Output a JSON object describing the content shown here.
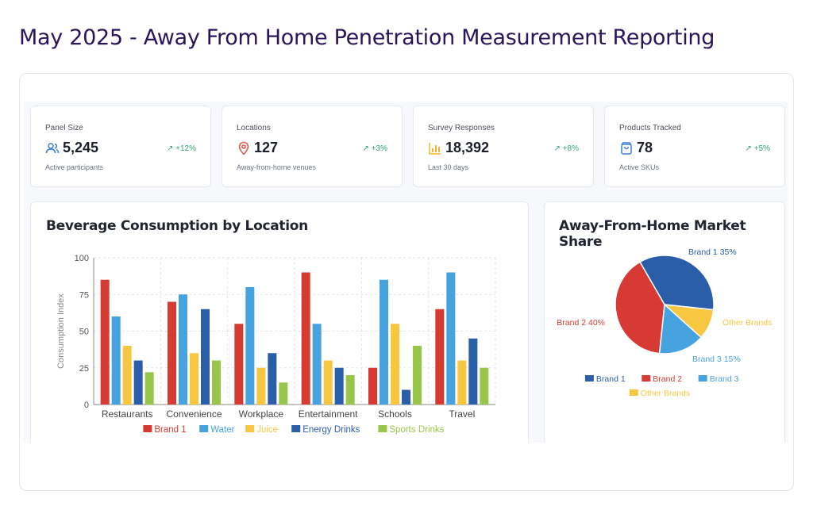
{
  "page": {
    "title": "May 2025 - Away From Home Penetration Measurement Reporting"
  },
  "kpis": [
    {
      "label": "Panel Size",
      "value": "5,245",
      "change": "+12%",
      "sub": "Active participants",
      "icon": "users-icon",
      "icon_color": "#3b7dd8"
    },
    {
      "label": "Locations",
      "value": "127",
      "change": "+3%",
      "sub": "Away-from-home venues",
      "icon": "map-pin-icon",
      "icon_color": "#e05a4f"
    },
    {
      "label": "Survey Responses",
      "value": "18,392",
      "change": "+8%",
      "sub": "Last 30 days",
      "icon": "bar-chart-icon",
      "icon_color": "#f2b531"
    },
    {
      "label": "Products Tracked",
      "value": "78",
      "change": "+5%",
      "sub": "Active SKUs",
      "icon": "shopping-bag-icon",
      "icon_color": "#3b7dd8"
    }
  ],
  "colors": {
    "trend_up": "#2fa36b",
    "brand1": "#d63a32",
    "water": "#47a2e0",
    "juice": "#f7c742",
    "energy": "#2a5ea8",
    "sports": "#97c64b"
  },
  "chart_data": [
    {
      "type": "bar",
      "title": "Beverage Consumption by Location",
      "xlabel": "",
      "ylabel": "Consumption Index",
      "ylim": [
        0,
        100
      ],
      "yticks": [
        0,
        25,
        50,
        75,
        100
      ],
      "grid": true,
      "legend_placement": "bottom",
      "categories": [
        "Restaurants",
        "Convenience",
        "Workplace",
        "Entertainment",
        "Schools",
        "Travel"
      ],
      "series": [
        {
          "name": "Brand 1",
          "color": "#d63a32",
          "values": [
            85,
            70,
            55,
            90,
            25,
            65
          ]
        },
        {
          "name": "Water",
          "color": "#47a2e0",
          "values": [
            60,
            75,
            80,
            55,
            85,
            90
          ]
        },
        {
          "name": "Juice",
          "color": "#f7c742",
          "values": [
            40,
            35,
            25,
            30,
            55,
            30
          ]
        },
        {
          "name": "Energy Drinks",
          "color": "#2a5ea8",
          "values": [
            30,
            65,
            35,
            25,
            10,
            45
          ]
        },
        {
          "name": "Sports Drinks",
          "color": "#97c64b",
          "values": [
            22,
            30,
            15,
            20,
            40,
            25
          ]
        }
      ]
    },
    {
      "type": "pie",
      "title": "Away-From-Home Market Share",
      "legend_placement": "bottom",
      "slices": [
        {
          "name": "Brand 1",
          "value": 35,
          "label": "Brand 1  35%",
          "color": "#2a5ea8"
        },
        {
          "name": "Other Brands",
          "value": 10,
          "label": "Other Brands",
          "color": "#f7c742"
        },
        {
          "name": "Brand 3",
          "value": 15,
          "label": "Brand 3  15%",
          "color": "#47a2e0"
        },
        {
          "name": "Brand 2",
          "value": 40,
          "label": "Brand 2  40%",
          "color": "#d63a32"
        }
      ],
      "legend": [
        "Brand 1",
        "Brand 2",
        "Brand 3",
        "Other Brands"
      ]
    }
  ]
}
